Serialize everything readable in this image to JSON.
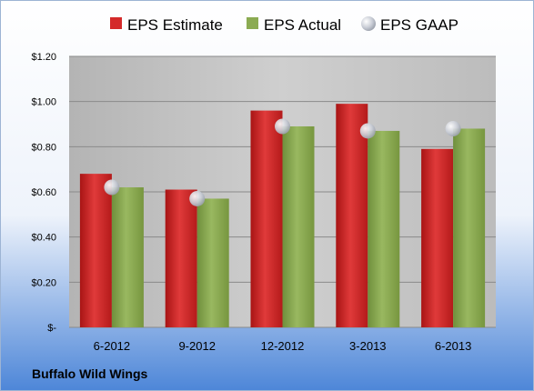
{
  "chart_data": {
    "type": "bar",
    "categories": [
      "6-2012",
      "9-2012",
      "12-2012",
      "3-2013",
      "6-2013"
    ],
    "series": [
      {
        "name": "EPS Estimate",
        "values": [
          0.68,
          0.61,
          0.96,
          0.99,
          0.79
        ]
      },
      {
        "name": "EPS Actual",
        "values": [
          0.62,
          0.57,
          0.89,
          0.87,
          0.88
        ]
      },
      {
        "name": "EPS GAAP",
        "values": [
          0.62,
          0.57,
          0.89,
          0.87,
          0.88
        ]
      }
    ],
    "y_ticks": [
      0,
      0.2,
      0.4,
      0.6,
      0.8,
      1.0,
      1.2
    ],
    "y_tick_labels": [
      "$-",
      "$0.20",
      "$0.40",
      "$0.60",
      "$0.80",
      "$1.00",
      "$1.20"
    ],
    "ylim": [
      0,
      1.2
    ],
    "grid": true,
    "legend_position": "top",
    "footer": "Buffalo Wild Wings",
    "colors": {
      "estimate": "#d42a2a",
      "actual": "#8bab52",
      "gaap": "#c8ccd4",
      "plot_bg": "#c4c4c4",
      "bg_top": "#ffffff",
      "bg_bottom": "#4d86d8"
    }
  }
}
